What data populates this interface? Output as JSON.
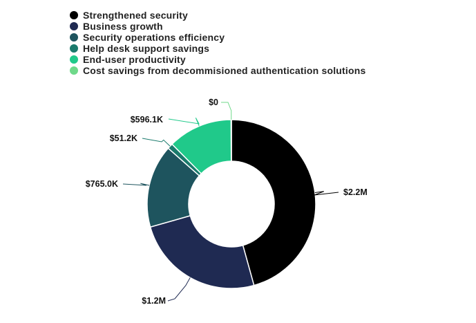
{
  "chart_data": {
    "type": "pie",
    "variant": "donut",
    "legend_position": "top-left",
    "categories": [
      "Strengthened security",
      "Business growth",
      "Security operations efficiency",
      "Help desk support savings",
      "End-user productivity",
      "Cost savings from decommisioned authentication solutions"
    ],
    "values": [
      2200000,
      1200000,
      765000,
      51200,
      596100,
      0
    ],
    "labels": [
      "$2.2M",
      "$1.2M",
      "$765.0K",
      "$51.2K",
      "$596.1K",
      "$0"
    ],
    "colors": [
      "#000000",
      "#1f2a52",
      "#1e545e",
      "#1a7a6c",
      "#20c98a",
      "#6fd98a"
    ]
  }
}
